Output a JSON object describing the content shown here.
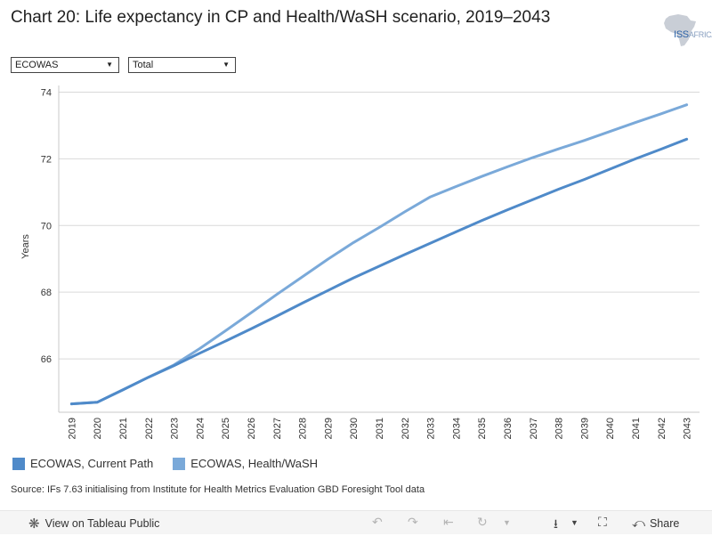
{
  "header": {
    "title": "Chart 20: Life expectancy in CP and Health/WaSH scenario, 2019–2043",
    "logo_main": "ISS",
    "logo_sub": "AFRICA"
  },
  "filters": {
    "region": "ECOWAS",
    "type": "Total"
  },
  "chart_data": {
    "type": "line",
    "title": "Chart 20: Life expectancy in CP and Health/WaSH scenario, 2019–2043",
    "xlabel": "",
    "ylabel": "Years",
    "ylim": [
      64.4,
      74.2
    ],
    "yticks": [
      66,
      68,
      70,
      72,
      74
    ],
    "x": [
      2019,
      2020,
      2021,
      2022,
      2023,
      2024,
      2025,
      2026,
      2027,
      2028,
      2029,
      2030,
      2031,
      2032,
      2033,
      2034,
      2035,
      2036,
      2037,
      2038,
      2039,
      2040,
      2041,
      2042,
      2043
    ],
    "series": [
      {
        "name": "ECOWAS, Current Path",
        "color": "#4f8ac9",
        "values": [
          64.65,
          64.7,
          65.07,
          65.45,
          65.8,
          66.17,
          66.53,
          66.9,
          67.28,
          67.67,
          68.05,
          68.43,
          68.78,
          69.13,
          69.47,
          69.81,
          70.15,
          70.47,
          70.78,
          71.09,
          71.38,
          71.69,
          72.0,
          72.29,
          72.59
        ]
      },
      {
        "name": "ECOWAS, Health/WaSH",
        "color": "#7aa9d9",
        "values": [
          64.65,
          64.7,
          65.07,
          65.45,
          65.82,
          66.31,
          66.84,
          67.38,
          67.93,
          68.46,
          68.99,
          69.49,
          69.94,
          70.41,
          70.86,
          71.17,
          71.47,
          71.76,
          72.04,
          72.3,
          72.55,
          72.82,
          73.09,
          73.35,
          73.62
        ]
      }
    ],
    "grid": true,
    "legend_position": "bottom-left"
  },
  "source": "Source: IFs 7.63 initialising from Institute for Health Metrics Evaluation GBD Foresight Tool data",
  "toolbar": {
    "view_label": "View on Tableau Public",
    "share_label": "Share"
  }
}
